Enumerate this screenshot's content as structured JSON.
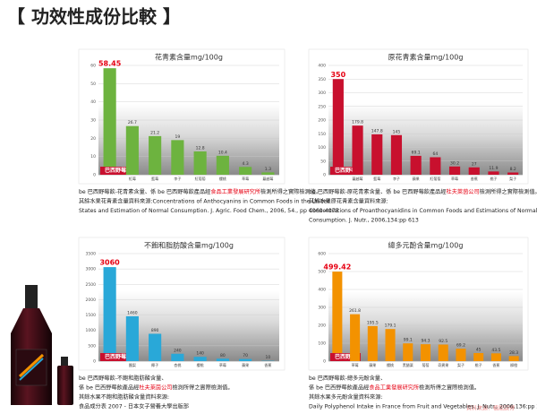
{
  "page_title": "【 功效性成份比較 】",
  "logo": "be",
  "source_note": "資料來源：植能蔬得",
  "chart_data": [
    {
      "type": "bar",
      "title": "花青素含量mg/100g",
      "color": "#6db33f",
      "categories": [
        "巴西野莓",
        "紅莓",
        "藍莓",
        "李子",
        "紅葡萄",
        "櫻桃",
        "草莓",
        "蔓越莓"
      ],
      "values": [
        58.45,
        26.7,
        21.2,
        19,
        12.8,
        10.4,
        4.3,
        1.3
      ],
      "ylim": [
        0,
        60
      ],
      "yticks": [
        0,
        10,
        20,
        30,
        40,
        50,
        60
      ],
      "grid": true
    },
    {
      "type": "bar",
      "title": "原花青素含量mg/100g",
      "color": "#c8102e",
      "categories": [
        "巴西野莓",
        "蔓越莓",
        "藍莓",
        "李子",
        "蘋果",
        "紅葡萄",
        "草莓",
        "香蕉",
        "桃子",
        "梨子"
      ],
      "values": [
        350,
        179.8,
        147.8,
        145,
        69.1,
        64,
        30.2,
        27,
        11.9,
        8.2
      ],
      "ylim": [
        0,
        400
      ],
      "yticks": [
        0,
        50,
        100,
        150,
        200,
        250,
        300,
        350,
        400
      ],
      "grid": true
    },
    {
      "type": "bar",
      "title": "不飽和脂肪酸含量mg/100g",
      "color": "#29a8d8",
      "categories": [
        "巴西野莓",
        "酪梨",
        "椰子",
        "杏桃",
        "櫻桃",
        "草莓",
        "蘋果",
        "香蕉"
      ],
      "values": [
        3060,
        1460,
        890,
        240,
        140,
        80,
        70,
        10
      ],
      "ylim": [
        0,
        3500
      ],
      "yticks": [
        0,
        500,
        1000,
        1500,
        2000,
        2500,
        3000,
        3500
      ],
      "grid": true
    },
    {
      "type": "bar",
      "title": "總多元酚含量mg/100g",
      "color": "#f39200",
      "categories": [
        "巴西野莓",
        "草莓",
        "蘋果",
        "櫻桃",
        "黑醋栗",
        "葡萄",
        "奇異果",
        "梨子",
        "桃子",
        "香蕉",
        "柳橙"
      ],
      "values": [
        499.42,
        261.8,
        195.5,
        179.1,
        99.1,
        94.3,
        92.5,
        69.2,
        45,
        43.5,
        28.3
      ],
      "ylim": [
        0,
        600
      ],
      "yticks": [
        0,
        100,
        200,
        300,
        400,
        500,
        600
      ],
      "grid": true
    }
  ],
  "captions": [
    [
      [
        "be 巴西野莓飲-花青素含量、係 be 巴西野莓飲產品經",
        "食品工業發展研究所",
        "檢測所得之實際檢測值。"
      ],
      [
        "其餘水果花青素含量資料來源:Concentrations of Anthocyanins in Common Foods in the United"
      ],
      [
        "States and Estimation of Normal Consumption. J. Agric. Food Chem., 2006, 54., pp 4069-4075"
      ]
    ],
    [
      [
        "be 巴西野莓飲-原花青素含量、係 be 巴西野莓飲產品經",
        "杜夫萊茵公司",
        "檢測所得之實際檢測值。"
      ],
      [
        "其餘水果原花青素含量資料來源:"
      ],
      [
        "Concentrations of Proanthocyanidins in Common Foods and Estimations of Normal"
      ],
      [
        "Consumption. J. Nutr., 2006,134:pp 613"
      ]
    ],
    [
      [
        "be 巴西野莓飲-不飽和脂肪酸含量、"
      ],
      [
        "係 be 巴西野莓飲產品經",
        "杜夫萊茵公司",
        "檢測所得之實際檢測值。"
      ],
      [
        "其餘水果不飽和脂肪酸含量資料來源:"
      ],
      [
        "食品成分表 2007 - 日本女子營養大學出版部"
      ]
    ],
    [
      [
        "be 巴西野莓飲-總多元酚含量、"
      ],
      [
        "係 be 巴西野莓飲產品經",
        "食品工業發展研究所",
        "檢測所得之實際檢測值。"
      ],
      [
        "其餘水果多元酚含量資料來源:"
      ],
      [
        "Daily Polyphenol Intake in France from Fruit and Vegetables. J. Nutr., 2006,136:pp 2368-2737"
      ]
    ]
  ]
}
